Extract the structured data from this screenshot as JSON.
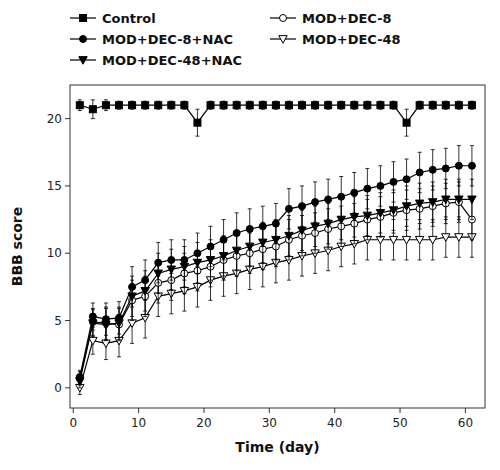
{
  "chart_data": {
    "type": "line",
    "xlabel": "Time (day)",
    "ylabel": "BBB score",
    "x": [
      1,
      3,
      5,
      7,
      9,
      11,
      13,
      15,
      17,
      19,
      21,
      23,
      25,
      27,
      29,
      31,
      33,
      35,
      37,
      39,
      41,
      43,
      45,
      47,
      49,
      51,
      53,
      55,
      57,
      59,
      61
    ],
    "series": [
      {
        "name": "MOD+DEC-48",
        "color": "black",
        "marker": "open-triangle-down",
        "line_style": "solid",
        "values": [
          0.0,
          3.5,
          3.3,
          3.5,
          4.8,
          5.2,
          6.8,
          7.0,
          7.2,
          7.5,
          8.0,
          8.3,
          8.5,
          8.8,
          9.0,
          9.3,
          9.5,
          9.8,
          10.0,
          10.2,
          10.5,
          10.7,
          11.0,
          11.0,
          11.0,
          11.0,
          11.0,
          11.0,
          11.2,
          11.2,
          11.2
        ],
        "errors": [
          0.5,
          1.0,
          1.2,
          1.2,
          1.5,
          1.5,
          1.5,
          1.5,
          1.5,
          1.5,
          1.5,
          1.5,
          1.5,
          1.5,
          1.5,
          1.5,
          1.5,
          1.5,
          1.5,
          1.5,
          1.5,
          1.5,
          1.5,
          1.5,
          1.5,
          1.5,
          1.5,
          1.5,
          1.5,
          1.5,
          1.5
        ]
      },
      {
        "name": "MOD+DEC-8",
        "color": "black",
        "marker": "open-circle",
        "line_style": "solid",
        "values": [
          0.7,
          4.9,
          4.8,
          4.7,
          6.5,
          6.8,
          7.8,
          8.0,
          8.5,
          8.7,
          9.0,
          9.5,
          9.8,
          10.0,
          10.3,
          10.5,
          11.0,
          11.3,
          11.5,
          11.8,
          12.0,
          12.2,
          12.5,
          12.7,
          13.0,
          13.2,
          13.3,
          13.5,
          13.7,
          13.8,
          12.5
        ],
        "errors": [
          0.5,
          1.0,
          1.2,
          1.2,
          1.5,
          1.5,
          1.5,
          1.5,
          1.5,
          1.5,
          1.5,
          1.5,
          1.5,
          1.5,
          1.5,
          1.5,
          1.5,
          1.5,
          1.5,
          1.5,
          1.5,
          1.5,
          1.5,
          1.5,
          1.5,
          1.5,
          1.5,
          1.5,
          1.5,
          1.5,
          1.5
        ]
      },
      {
        "name": "MOD+DEC-48+NAC",
        "color": "black",
        "marker": "triangle-down",
        "line_style": "solid",
        "values": [
          0.5,
          4.8,
          4.7,
          4.8,
          6.8,
          7.2,
          8.5,
          8.8,
          9.0,
          9.3,
          9.5,
          9.8,
          10.2,
          10.5,
          10.8,
          11.0,
          11.3,
          11.7,
          12.0,
          12.2,
          12.5,
          12.7,
          12.8,
          13.0,
          13.2,
          13.5,
          13.7,
          13.8,
          14.0,
          14.0,
          14.0
        ],
        "errors": [
          0.5,
          1.0,
          1.2,
          1.2,
          1.5,
          1.5,
          1.5,
          1.5,
          1.5,
          1.5,
          1.5,
          1.5,
          1.5,
          1.5,
          1.5,
          1.5,
          1.5,
          1.5,
          1.5,
          1.5,
          1.5,
          1.5,
          1.5,
          1.5,
          1.5,
          1.5,
          1.5,
          1.5,
          1.5,
          1.5,
          1.5
        ]
      },
      {
        "name": "MOD+DEC-8+NAC",
        "color": "black",
        "marker": "circle",
        "line_style": "solid",
        "values": [
          0.8,
          5.3,
          5.1,
          5.2,
          7.5,
          8.0,
          9.3,
          9.5,
          9.5,
          10.0,
          10.5,
          11.0,
          11.5,
          11.8,
          12.0,
          12.2,
          13.3,
          13.5,
          13.8,
          14.0,
          14.2,
          14.5,
          14.8,
          15.0,
          15.3,
          15.5,
          16.0,
          16.2,
          16.3,
          16.5,
          16.5
        ],
        "errors": [
          0.5,
          1.0,
          1.2,
          1.2,
          1.5,
          1.5,
          1.5,
          1.5,
          1.5,
          1.5,
          1.5,
          1.5,
          1.5,
          1.5,
          1.5,
          1.5,
          1.5,
          1.5,
          1.5,
          1.5,
          1.5,
          1.5,
          1.5,
          1.5,
          1.5,
          1.5,
          1.5,
          1.5,
          1.5,
          1.5,
          1.5
        ]
      },
      {
        "name": "Control",
        "color": "black",
        "marker": "square",
        "line_style": "solid",
        "values": [
          21.0,
          20.7,
          21.0,
          21.0,
          21.0,
          21.0,
          21.0,
          21.0,
          21.0,
          19.7,
          21.0,
          21.0,
          21.0,
          21.0,
          21.0,
          21.0,
          21.0,
          21.0,
          21.0,
          21.0,
          21.0,
          21.0,
          21.0,
          21.0,
          21.0,
          19.7,
          21.0,
          21.0,
          21.0,
          21.0,
          21.0
        ],
        "errors": [
          0.4,
          0.7,
          0.4,
          0.3,
          0.3,
          0.3,
          0.3,
          0.3,
          0.3,
          1.0,
          0.3,
          0.3,
          0.3,
          0.3,
          0.3,
          0.3,
          0.3,
          0.3,
          0.3,
          0.3,
          0.3,
          0.3,
          0.3,
          0.3,
          0.3,
          1.0,
          0.3,
          0.3,
          0.3,
          0.3,
          0.3
        ]
      }
    ],
    "xlim": [
      -0.5,
      63
    ],
    "ylim": [
      -1.5,
      22.5
    ],
    "xticks": [
      0,
      10,
      20,
      30,
      40,
      50,
      60
    ],
    "yticks": [
      0,
      5,
      10,
      15,
      20
    ],
    "grid": false,
    "legend": "top"
  }
}
